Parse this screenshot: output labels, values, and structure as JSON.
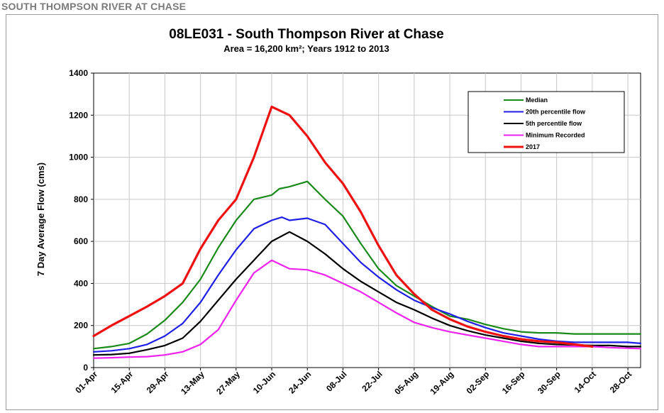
{
  "page": {
    "header": "SOUTH THOMPSON RIVER AT CHASE"
  },
  "chart_data": {
    "type": "line",
    "title": "08LE031 - South Thompson River at Chase",
    "subtitle": "Area = 16,200 km²; Years 1912 to 2013",
    "ylabel": "7 Day Average Flow (cms)",
    "xlabel": "",
    "ylim": [
      0,
      1400
    ],
    "yticks": [
      "0",
      "200",
      "400",
      "600",
      "800",
      "1000",
      "1200",
      "1400"
    ],
    "xlim": [
      0,
      215
    ],
    "x_unit": "days since 01-Apr",
    "categories": [
      "01-Apr",
      "15-Apr",
      "29-Apr",
      "13-May",
      "27-May",
      "10-Jun",
      "24-Jun",
      "08-Jul",
      "22-Jul",
      "05-Aug",
      "19-Aug",
      "02-Sep",
      "16-Sep",
      "30-Sep",
      "14-Oct",
      "28-Oct"
    ],
    "grid": true,
    "legend_position": "top-right",
    "series": [
      {
        "name": "Median",
        "color": "#1a8a1a",
        "x": [
          0,
          7,
          14,
          21,
          28,
          35,
          42,
          49,
          56,
          63,
          70,
          73,
          77,
          84,
          91,
          98,
          105,
          112,
          119,
          126,
          133,
          140,
          147,
          154,
          161,
          168,
          175,
          182,
          189,
          196,
          203,
          210,
          215
        ],
        "y": [
          90,
          100,
          115,
          160,
          225,
          310,
          420,
          570,
          700,
          800,
          820,
          850,
          860,
          885,
          800,
          720,
          590,
          470,
          390,
          340,
          290,
          245,
          230,
          205,
          185,
          170,
          165,
          165,
          160,
          160,
          160,
          160,
          160
        ]
      },
      {
        "name": "20th percentile flow",
        "color": "#1f1fe6",
        "x": [
          0,
          7,
          14,
          21,
          28,
          35,
          42,
          49,
          56,
          63,
          70,
          74,
          77,
          84,
          91,
          98,
          105,
          112,
          119,
          126,
          133,
          140,
          147,
          154,
          161,
          168,
          175,
          182,
          189,
          196,
          203,
          210,
          215
        ],
        "y": [
          75,
          80,
          90,
          110,
          150,
          210,
          310,
          440,
          560,
          660,
          700,
          715,
          700,
          710,
          680,
          590,
          500,
          430,
          370,
          320,
          285,
          255,
          220,
          190,
          165,
          150,
          135,
          125,
          120,
          120,
          120,
          120,
          115
        ]
      },
      {
        "name": "5th percentile flow",
        "color": "#000000",
        "x": [
          0,
          7,
          14,
          21,
          28,
          35,
          42,
          49,
          56,
          63,
          70,
          77,
          84,
          91,
          98,
          105,
          112,
          119,
          126,
          133,
          140,
          147,
          154,
          161,
          168,
          175,
          182,
          189,
          196,
          203,
          210,
          215
        ],
        "y": [
          60,
          62,
          68,
          85,
          105,
          140,
          220,
          320,
          420,
          510,
          600,
          645,
          600,
          540,
          470,
          410,
          360,
          310,
          275,
          235,
          200,
          175,
          155,
          140,
          125,
          115,
          110,
          108,
          105,
          105,
          100,
          100
        ]
      },
      {
        "name": "Minimum Recorded",
        "color": "#ee22ee",
        "x": [
          0,
          7,
          14,
          21,
          28,
          35,
          42,
          49,
          56,
          63,
          70,
          77,
          84,
          91,
          98,
          105,
          112,
          119,
          126,
          133,
          140,
          147,
          154,
          161,
          168,
          175,
          182,
          189,
          196,
          203,
          210,
          215
        ],
        "y": [
          45,
          47,
          50,
          52,
          60,
          75,
          110,
          180,
          320,
          450,
          510,
          470,
          465,
          440,
          400,
          360,
          310,
          260,
          215,
          190,
          170,
          155,
          140,
          125,
          110,
          100,
          100,
          100,
          100,
          95,
          92,
          90
        ]
      },
      {
        "name": "2017",
        "color": "#ee1111",
        "x": [
          0,
          7,
          14,
          21,
          28,
          35,
          42,
          49,
          56,
          63,
          70,
          77,
          84,
          91,
          98,
          105,
          112,
          119,
          126,
          133,
          140,
          147,
          154,
          161,
          168,
          175,
          182,
          189,
          196
        ],
        "y": [
          150,
          200,
          245,
          290,
          340,
          400,
          565,
          700,
          800,
          1000,
          1240,
          1200,
          1100,
          975,
          875,
          740,
          580,
          440,
          350,
          275,
          230,
          195,
          170,
          150,
          135,
          125,
          120,
          110,
          100
        ]
      }
    ]
  }
}
